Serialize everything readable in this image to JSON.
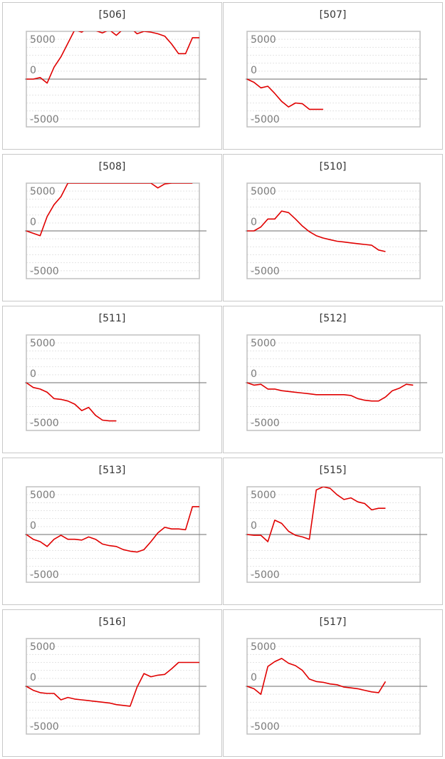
{
  "colors": {
    "line": "#e00000",
    "frame": "#c0c0c0",
    "grid": "#e4e4e4",
    "zero_line": "#8a8a8a",
    "tick_text": "#7a7a7a"
  },
  "chart_data": [
    {
      "type": "line",
      "title": "[506]",
      "ylim": [
        -6000,
        6000
      ],
      "yticks": [
        5000,
        0,
        -5000
      ],
      "grid": true,
      "x": [
        0,
        1,
        2,
        3,
        4,
        5,
        6,
        7,
        8,
        9,
        10,
        11,
        12,
        13,
        14,
        15,
        16,
        17,
        18,
        19,
        20,
        21,
        22,
        23,
        24,
        25
      ],
      "series": [
        {
          "values": [
            0,
            0,
            200,
            -500,
            1500,
            2800,
            4500,
            6200,
            5900,
            6500,
            6100,
            5800,
            6200,
            5500,
            6300,
            6500,
            5700,
            6000,
            5900,
            5700,
            5400,
            4400,
            3200,
            3200,
            5200,
            5200
          ]
        }
      ]
    },
    {
      "type": "line",
      "title": "[507]",
      "ylim": [
        -6000,
        6000
      ],
      "yticks": [
        5000,
        0,
        -5000
      ],
      "grid": true,
      "x": [
        0,
        1,
        2,
        3,
        4,
        5,
        6,
        7,
        8,
        9,
        10,
        11
      ],
      "series": [
        {
          "values": [
            0,
            -400,
            -1100,
            -900,
            -1800,
            -2800,
            -3500,
            -3000,
            -3100,
            -3800,
            -3800,
            -3800
          ]
        }
      ]
    },
    {
      "type": "line",
      "title": "[508]",
      "ylim": [
        -6000,
        6000
      ],
      "yticks": [
        5000,
        0,
        -5000
      ],
      "grid": true,
      "x": [
        0,
        1,
        2,
        3,
        4,
        5,
        6,
        7,
        8,
        9,
        10,
        11,
        12,
        13,
        14,
        15,
        16,
        17,
        18,
        19,
        20,
        21,
        22,
        23,
        24
      ],
      "series": [
        {
          "values": [
            0,
            -300,
            -600,
            1800,
            3300,
            4300,
            6000,
            6000,
            6000,
            6000,
            6000,
            6000,
            6000,
            6000,
            6000,
            6000,
            6000,
            6000,
            6000,
            5400,
            5900,
            6000,
            6000,
            6000,
            6000
          ]
        }
      ]
    },
    {
      "type": "line",
      "title": "[510]",
      "ylim": [
        -6000,
        6000
      ],
      "yticks": [
        5000,
        0,
        -5000
      ],
      "grid": true,
      "x": [
        0,
        1,
        2,
        3,
        4,
        5,
        6,
        7,
        8,
        9,
        10,
        11,
        12,
        13,
        14,
        15,
        16,
        17,
        18,
        19,
        20
      ],
      "series": [
        {
          "values": [
            0,
            0,
            500,
            1500,
            1500,
            2500,
            2300,
            1500,
            600,
            -100,
            -600,
            -900,
            -1100,
            -1300,
            -1400,
            -1500,
            -1600,
            -1700,
            -1800,
            -2400,
            -2600
          ]
        }
      ]
    },
    {
      "type": "line",
      "title": "[511]",
      "ylim": [
        -6000,
        6000
      ],
      "yticks": [
        5000,
        0,
        -5000
      ],
      "grid": true,
      "x": [
        0,
        1,
        2,
        3,
        4,
        5,
        6,
        7,
        8,
        9,
        10,
        11,
        12,
        13
      ],
      "series": [
        {
          "values": [
            0,
            -600,
            -800,
            -1200,
            -2000,
            -2100,
            -2300,
            -2700,
            -3500,
            -3100,
            -4100,
            -4700,
            -4800,
            -4800
          ]
        }
      ]
    },
    {
      "type": "line",
      "title": "[512]",
      "ylim": [
        -6000,
        6000
      ],
      "yticks": [
        5000,
        0,
        -5000
      ],
      "grid": true,
      "x": [
        0,
        1,
        2,
        3,
        4,
        5,
        6,
        7,
        8,
        9,
        10,
        11,
        12,
        13,
        14,
        15,
        16,
        17,
        18,
        19,
        20,
        21,
        22,
        23,
        24
      ],
      "series": [
        {
          "values": [
            0,
            -300,
            -200,
            -800,
            -800,
            -1000,
            -1100,
            -1200,
            -1300,
            -1400,
            -1500,
            -1500,
            -1500,
            -1500,
            -1500,
            -1600,
            -2000,
            -2200,
            -2300,
            -2300,
            -1800,
            -1000,
            -700,
            -200,
            -300
          ]
        }
      ]
    },
    {
      "type": "line",
      "title": "[513]",
      "ylim": [
        -6000,
        6000
      ],
      "yticks": [
        5000,
        0,
        -5000
      ],
      "grid": true,
      "x": [
        0,
        1,
        2,
        3,
        4,
        5,
        6,
        7,
        8,
        9,
        10,
        11,
        12,
        13,
        14,
        15,
        16,
        17,
        18,
        19,
        20,
        21,
        22,
        23,
        24,
        25
      ],
      "series": [
        {
          "values": [
            0,
            -600,
            -900,
            -1500,
            -600,
            -100,
            -600,
            -600,
            -700,
            -300,
            -600,
            -1200,
            -1400,
            -1500,
            -1900,
            -2100,
            -2200,
            -1900,
            -900,
            200,
            900,
            700,
            700,
            600,
            3500,
            3500
          ]
        }
      ]
    },
    {
      "type": "line",
      "title": "[515]",
      "ylim": [
        -6000,
        6000
      ],
      "yticks": [
        5000,
        0,
        -5000
      ],
      "grid": true,
      "x": [
        0,
        1,
        2,
        3,
        4,
        5,
        6,
        7,
        8,
        9,
        10,
        11,
        12,
        13,
        14,
        15,
        16,
        17,
        18,
        19,
        20
      ],
      "series": [
        {
          "values": [
            0,
            -100,
            -100,
            -900,
            1800,
            1400,
            400,
            -100,
            -300,
            -600,
            5600,
            6000,
            5800,
            5000,
            4400,
            4600,
            4100,
            3900,
            3100,
            3300,
            3300
          ]
        }
      ]
    },
    {
      "type": "line",
      "title": "[516]",
      "ylim": [
        -6000,
        6000
      ],
      "yticks": [
        5000,
        0,
        -5000
      ],
      "grid": true,
      "x": [
        0,
        1,
        2,
        3,
        4,
        5,
        6,
        7,
        8,
        9,
        10,
        11,
        12,
        13,
        14,
        15,
        16,
        17,
        18,
        19,
        20,
        21,
        22,
        23,
        24,
        25
      ],
      "series": [
        {
          "values": [
            0,
            -500,
            -800,
            -900,
            -900,
            -1700,
            -1400,
            -1600,
            -1700,
            -1800,
            -1900,
            -2000,
            -2100,
            -2300,
            -2400,
            -2500,
            -100,
            1600,
            1200,
            1400,
            1500,
            2200,
            3000,
            3000,
            3000,
            3000
          ]
        }
      ]
    },
    {
      "type": "line",
      "title": "[517]",
      "ylim": [
        -6000,
        6000
      ],
      "yticks": [
        5000,
        0,
        -5000
      ],
      "grid": true,
      "x": [
        0,
        1,
        2,
        3,
        4,
        5,
        6,
        7,
        8,
        9,
        10,
        11,
        12,
        13,
        14,
        15,
        16,
        17,
        18,
        19,
        20
      ],
      "series": [
        {
          "values": [
            0,
            -300,
            -1000,
            2500,
            3100,
            3500,
            2900,
            2600,
            2000,
            900,
            600,
            500,
            300,
            200,
            -100,
            -200,
            -300,
            -500,
            -700,
            -800,
            600
          ]
        }
      ]
    }
  ]
}
